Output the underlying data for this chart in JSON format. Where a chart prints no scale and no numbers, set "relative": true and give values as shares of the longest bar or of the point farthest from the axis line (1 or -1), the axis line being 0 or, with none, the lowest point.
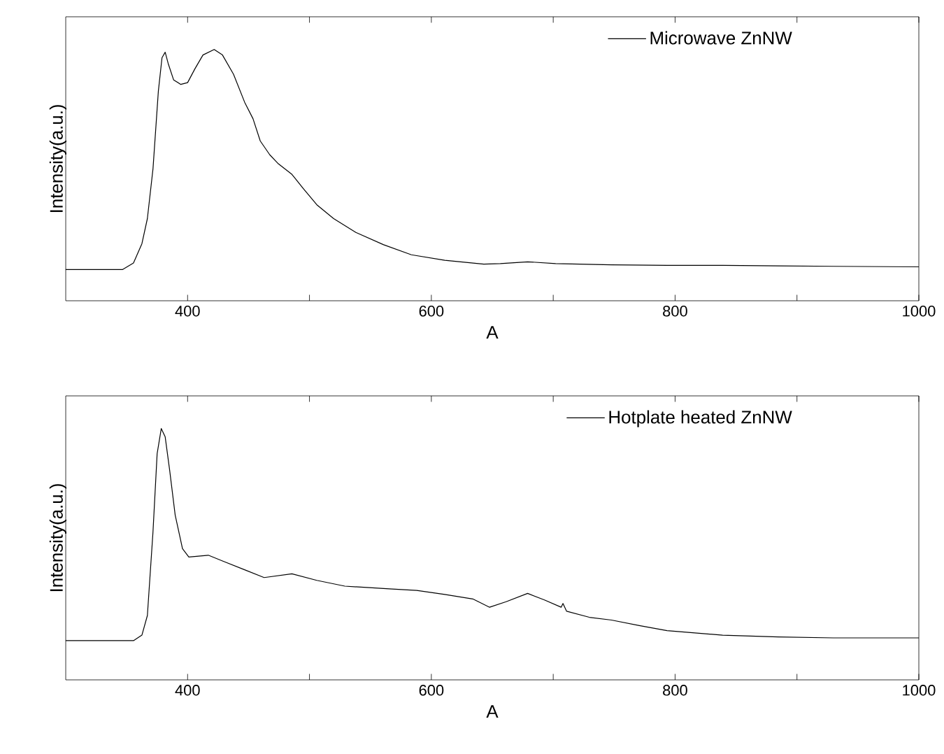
{
  "chart_data": [
    {
      "type": "line",
      "relative": true,
      "xlabel": "A",
      "ylabel": "Intensity(a.u.)",
      "xlim": [
        300,
        1000
      ],
      "xticks": [
        400,
        {
          "value": 500,
          "label": null
        },
        600,
        {
          "value": 700,
          "label": null
        },
        800,
        {
          "value": 900,
          "label": null
        },
        1000
      ],
      "tick_labels": "x",
      "legend": "top right",
      "grid": false,
      "series": [
        {
          "name": "Microwave ZnNW",
          "color": "#000000",
          "x": [
            300,
            346.5,
            355.6,
            362.5,
            367,
            371.6,
            376,
            379,
            381.6,
            384,
            388.5,
            394.4,
            400,
            406,
            412.6,
            421.8,
            428.6,
            437.7,
            446.8,
            453.7,
            459.6,
            467.4,
            474,
            485.6,
            494.7,
            506,
            519.8,
            538,
            560.8,
            583.6,
            611,
            643,
            656.6,
            679,
            702,
            747.8,
            793.4,
            839,
            884.6,
            930,
            1000
          ],
          "values": [
            0.124,
            0.124,
            0.15,
            0.227,
            0.327,
            0.525,
            0.834,
            0.967,
            0.989,
            0.945,
            0.879,
            0.861,
            0.868,
            0.923,
            0.978,
            1.0,
            0.978,
            0.901,
            0.79,
            0.724,
            0.636,
            0.581,
            0.547,
            0.503,
            0.448,
            0.382,
            0.327,
            0.272,
            0.223,
            0.183,
            0.161,
            0.146,
            0.148,
            0.155,
            0.148,
            0.143,
            0.141,
            0.141,
            0.139,
            0.137,
            0.135
          ]
        }
      ]
    },
    {
      "type": "line",
      "relative": true,
      "xlabel": "A",
      "ylabel": "Intensity(a.u.)",
      "xlim": [
        300,
        1000
      ],
      "xticks": [
        400,
        {
          "value": 500,
          "label": null
        },
        600,
        {
          "value": 700,
          "label": null
        },
        800,
        {
          "value": 900,
          "label": null
        },
        1000
      ],
      "tick_labels": "x",
      "legend": "top right",
      "grid": false,
      "series": [
        {
          "name": "Hotplate heated ZnNW",
          "color": "#000000",
          "x": [
            300,
            355.6,
            362.5,
            367,
            371.6,
            375,
            378.4,
            381.6,
            385.3,
            389.8,
            395.8,
            401,
            417,
            428.6,
            446.8,
            462.8,
            485.6,
            506,
            529,
            565.4,
            588,
            611,
            634,
            647.8,
            661.4,
            679,
            692.8,
            706.5,
            708,
            711,
            729.6,
            747.8,
            770.6,
            793.4,
            839,
            884.6,
            930,
            1000
          ],
          "values": [
            0.156,
            0.156,
            0.178,
            0.256,
            0.589,
            0.9,
            1.0,
            0.967,
            0.833,
            0.656,
            0.522,
            0.489,
            0.496,
            0.473,
            0.438,
            0.407,
            0.422,
            0.396,
            0.373,
            0.362,
            0.356,
            0.34,
            0.322,
            0.289,
            0.311,
            0.344,
            0.318,
            0.289,
            0.304,
            0.273,
            0.249,
            0.238,
            0.216,
            0.196,
            0.178,
            0.171,
            0.167,
            0.167
          ]
        }
      ]
    }
  ]
}
